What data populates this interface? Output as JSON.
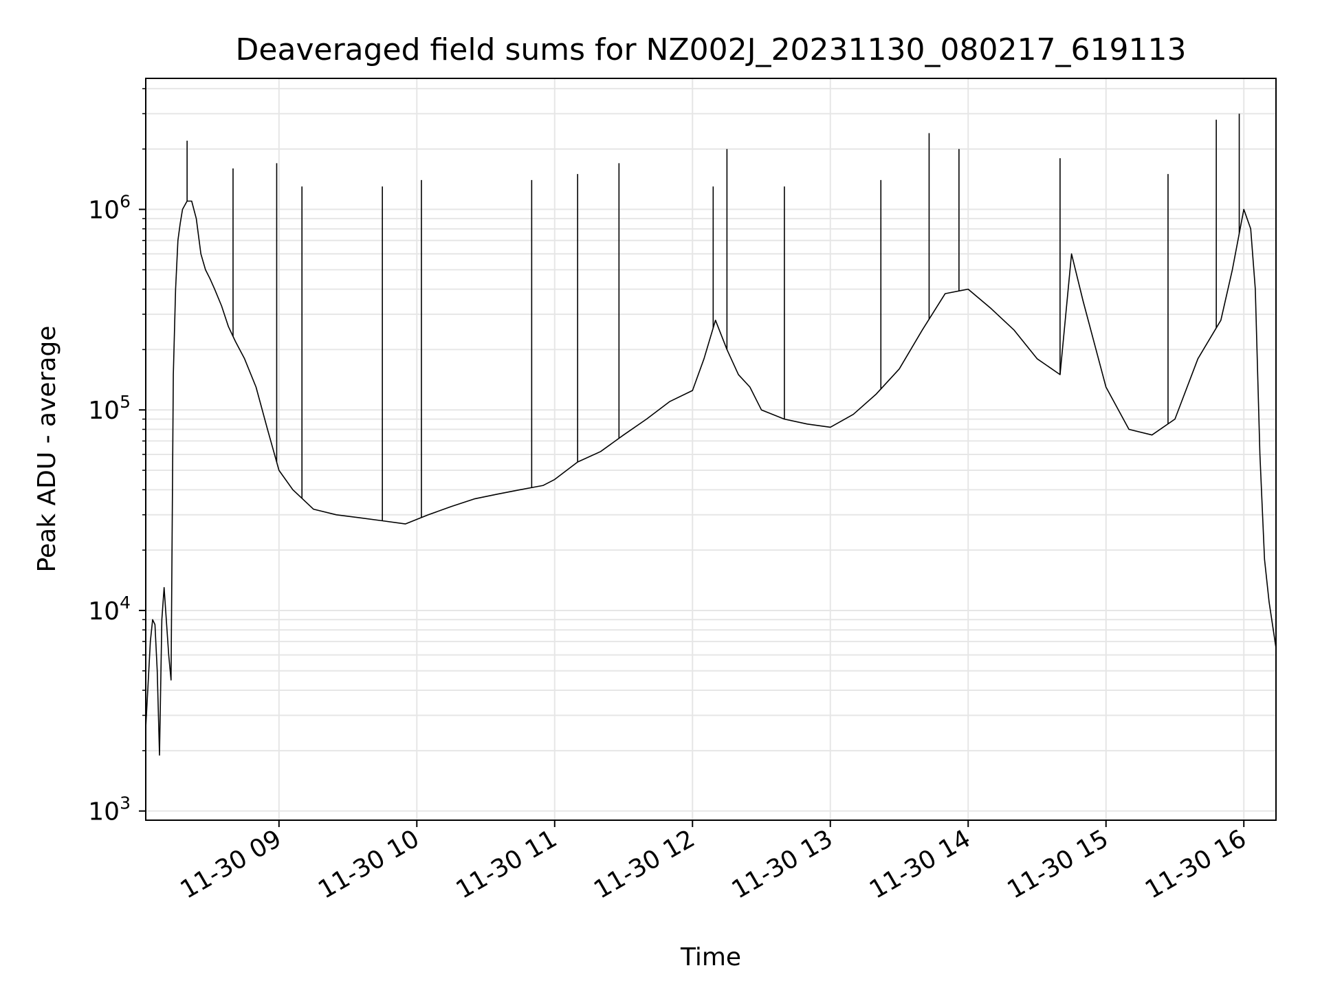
{
  "chart_data": {
    "type": "line",
    "title": "Deaveraged field sums for NZ002J_20231130_080217_619113",
    "xlabel": "Time",
    "ylabel": "Peak ADU - average",
    "yscale": "log",
    "ylim": [
      900,
      4500000
    ],
    "xlim": [
      "2023-11-30 08:02",
      "2023-11-30 16:14"
    ],
    "grid": true,
    "legend": "none",
    "line_color": "#000000",
    "grid_color": "#e6e6e6",
    "x_tick_labels": [
      "11-30 09",
      "11-30 10",
      "11-30 11",
      "11-30 12",
      "11-30 13",
      "11-30 14",
      "11-30 15",
      "11-30 16"
    ],
    "y_tick_labels": [
      {
        "base": "10",
        "exp": "3",
        "value": 1000
      },
      {
        "base": "10",
        "exp": "4",
        "value": 10000
      },
      {
        "base": "10",
        "exp": "5",
        "value": 100000
      },
      {
        "base": "10",
        "exp": "6",
        "value": 1000000
      }
    ],
    "series": [
      {
        "x": [
          "2023-11-30 08:02",
          "2023-11-30 08:04",
          "2023-11-30 08:05",
          "2023-11-30 08:06",
          "2023-11-30 08:07",
          "2023-11-30 08:08",
          "2023-11-30 08:09",
          "2023-11-30 08:10",
          "2023-11-30 08:12",
          "2023-11-30 08:13",
          "2023-11-30 08:14",
          "2023-11-30 08:15",
          "2023-11-30 08:16",
          "2023-11-30 08:17",
          "2023-11-30 08:18",
          "2023-11-30 08:20",
          "2023-11-30 08:22",
          "2023-11-30 08:24",
          "2023-11-30 08:26",
          "2023-11-30 08:28",
          "2023-11-30 08:30",
          "2023-11-30 08:32",
          "2023-11-30 08:35",
          "2023-11-30 08:38",
          "2023-11-30 08:41",
          "2023-11-30 08:45",
          "2023-11-30 08:50",
          "2023-11-30 08:55",
          "2023-11-30 09:00",
          "2023-11-30 09:06",
          "2023-11-30 09:15",
          "2023-11-30 09:25",
          "2023-11-30 09:35",
          "2023-11-30 09:45",
          "2023-11-30 09:55",
          "2023-11-30 10:05",
          "2023-11-30 10:15",
          "2023-11-30 10:25",
          "2023-11-30 10:35",
          "2023-11-30 10:45",
          "2023-11-30 10:55",
          "2023-11-30 11:00",
          "2023-11-30 11:10",
          "2023-11-30 11:20",
          "2023-11-30 11:30",
          "2023-11-30 11:40",
          "2023-11-30 11:50",
          "2023-11-30 12:00",
          "2023-11-30 12:05",
          "2023-11-30 12:10",
          "2023-11-30 12:15",
          "2023-11-30 12:20",
          "2023-11-30 12:25",
          "2023-11-30 12:30",
          "2023-11-30 12:40",
          "2023-11-30 12:50",
          "2023-11-30 13:00",
          "2023-11-30 13:10",
          "2023-11-30 13:20",
          "2023-11-30 13:30",
          "2023-11-30 13:40",
          "2023-11-30 13:50",
          "2023-11-30 14:00",
          "2023-11-30 14:10",
          "2023-11-30 14:20",
          "2023-11-30 14:30",
          "2023-11-30 14:40",
          "2023-11-30 14:45",
          "2023-11-30 14:50",
          "2023-11-30 15:00",
          "2023-11-30 15:10",
          "2023-11-30 15:20",
          "2023-11-30 15:30",
          "2023-11-30 15:40",
          "2023-11-30 15:50",
          "2023-11-30 15:55",
          "2023-11-30 16:00",
          "2023-11-30 16:03",
          "2023-11-30 16:05",
          "2023-11-30 16:07",
          "2023-11-30 16:09",
          "2023-11-30 16:11",
          "2023-11-30 16:14"
        ],
        "y": [
          2600,
          7000,
          9000,
          8500,
          5000,
          1900,
          9000,
          13000,
          6000,
          4500,
          150000,
          400000,
          700000,
          850000,
          1000000,
          1100000,
          1100000,
          900000,
          600000,
          500000,
          450000,
          400000,
          330000,
          260000,
          220000,
          180000,
          130000,
          80000,
          50000,
          40000,
          32000,
          30000,
          29000,
          28000,
          27000,
          30000,
          33000,
          36000,
          38000,
          40000,
          42000,
          45000,
          55000,
          62000,
          75000,
          90000,
          110000,
          125000,
          180000,
          280000,
          200000,
          150000,
          130000,
          100000,
          90000,
          85000,
          82000,
          95000,
          120000,
          160000,
          250000,
          380000,
          400000,
          320000,
          250000,
          180000,
          150000,
          600000,
          350000,
          130000,
          80000,
          75000,
          90000,
          180000,
          280000,
          500000,
          1000000,
          800000,
          400000,
          60000,
          18000,
          11000,
          6500
        ],
        "spikes": [
          {
            "x": "2023-11-30 08:20",
            "y": 2200000
          },
          {
            "x": "2023-11-30 08:40",
            "y": 1600000
          },
          {
            "x": "2023-11-30 08:59",
            "y": 1700000
          },
          {
            "x": "2023-11-30 09:10",
            "y": 1300000
          },
          {
            "x": "2023-11-30 09:45",
            "y": 1300000
          },
          {
            "x": "2023-11-30 10:02",
            "y": 1400000
          },
          {
            "x": "2023-11-30 10:50",
            "y": 1400000
          },
          {
            "x": "2023-11-30 11:10",
            "y": 1500000
          },
          {
            "x": "2023-11-30 11:28",
            "y": 1700000
          },
          {
            "x": "2023-11-30 12:09",
            "y": 1300000
          },
          {
            "x": "2023-11-30 12:15",
            "y": 2000000
          },
          {
            "x": "2023-11-30 12:40",
            "y": 1300000
          },
          {
            "x": "2023-11-30 13:22",
            "y": 1400000
          },
          {
            "x": "2023-11-30 13:43",
            "y": 2400000
          },
          {
            "x": "2023-11-30 13:56",
            "y": 2000000
          },
          {
            "x": "2023-11-30 14:40",
            "y": 1800000
          },
          {
            "x": "2023-11-30 15:27",
            "y": 1500000
          },
          {
            "x": "2023-11-30 15:48",
            "y": 2800000
          },
          {
            "x": "2023-11-30 15:58",
            "y": 3000000
          }
        ]
      }
    ]
  }
}
